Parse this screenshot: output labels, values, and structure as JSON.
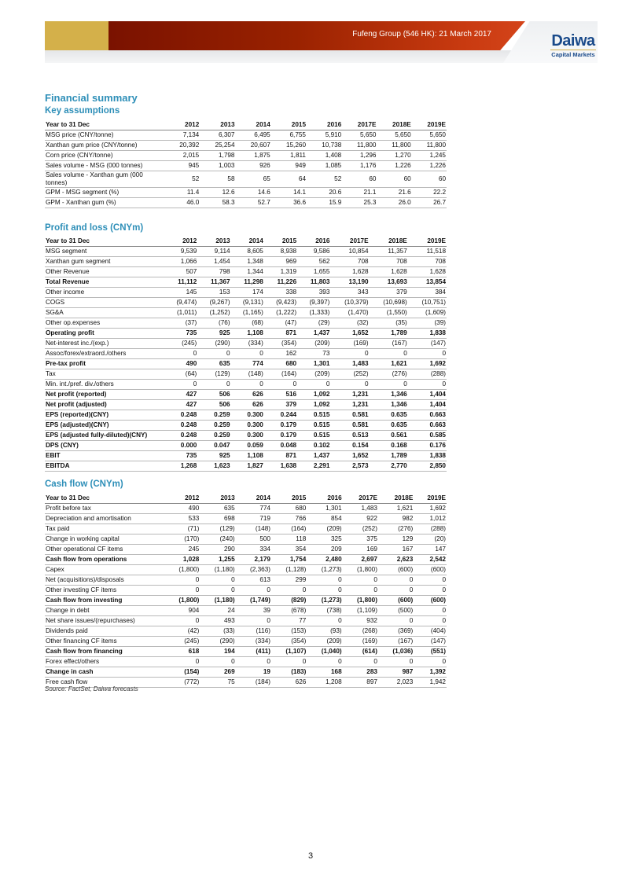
{
  "header": {
    "title": "Fufeng Group (546 HK): 21 March 2017",
    "logo_main": "Daiwa",
    "logo_sub": "Capital Markets",
    "accent": "#2e8fb8",
    "band_red": "#9a2200",
    "band_gold": "#d4b04a"
  },
  "page_title": "Financial summary",
  "columns": [
    "Year to 31 Dec",
    "2012",
    "2013",
    "2014",
    "2015",
    "2016",
    "2017E",
    "2018E",
    "2019E"
  ],
  "tables": [
    {
      "title": "Key assumptions",
      "rows": [
        {
          "label": "MSG price (CNY/tonne)",
          "values": [
            "7,134",
            "6,307",
            "6,495",
            "6,755",
            "5,910",
            "5,650",
            "5,650",
            "5,650"
          ]
        },
        {
          "label": "Xanthan gum price (CNY/tonne)",
          "values": [
            "20,392",
            "25,254",
            "20,607",
            "15,260",
            "10,738",
            "11,800",
            "11,800",
            "11,800"
          ]
        },
        {
          "label": "Corn price (CNY/tonne)",
          "values": [
            "2,015",
            "1,798",
            "1,875",
            "1,811",
            "1,408",
            "1,296",
            "1,270",
            "1,245"
          ]
        },
        {
          "label": "Sales volume - MSG (000 tonnes)",
          "values": [
            "945",
            "1,003",
            "926",
            "949",
            "1,085",
            "1,176",
            "1,226",
            "1,226"
          ]
        },
        {
          "label": "Sales volume - Xanthan gum (000 tonnes)",
          "values": [
            "52",
            "58",
            "65",
            "64",
            "52",
            "60",
            "60",
            "60"
          ],
          "tall": true
        },
        {
          "label": "GPM - MSG segment (%)",
          "values": [
            "11.4",
            "12.6",
            "14.6",
            "14.1",
            "20.6",
            "21.1",
            "21.6",
            "22.2"
          ]
        },
        {
          "label": "GPM - Xanthan gum (%)",
          "values": [
            "46.0",
            "58.3",
            "52.7",
            "36.6",
            "15.9",
            "25.3",
            "26.0",
            "26.7"
          ]
        }
      ]
    },
    {
      "title": "Profit and loss (CNYm)",
      "rows": [
        {
          "label": "MSG segment",
          "values": [
            "9,539",
            "9,114",
            "8,605",
            "8,938",
            "9,586",
            "10,854",
            "11,357",
            "11,518"
          ]
        },
        {
          "label": "Xanthan gum segment",
          "values": [
            "1,066",
            "1,454",
            "1,348",
            "969",
            "562",
            "708",
            "708",
            "708"
          ]
        },
        {
          "label": "Other Revenue",
          "values": [
            "507",
            "798",
            "1,344",
            "1,319",
            "1,655",
            "1,628",
            "1,628",
            "1,628"
          ]
        },
        {
          "label": "Total Revenue",
          "values": [
            "11,112",
            "11,367",
            "11,298",
            "11,226",
            "11,803",
            "13,190",
            "13,693",
            "13,854"
          ],
          "bold": true
        },
        {
          "label": "Other income",
          "values": [
            "145",
            "153",
            "174",
            "338",
            "393",
            "343",
            "379",
            "384"
          ]
        },
        {
          "label": "COGS",
          "values": [
            "(9,474)",
            "(9,267)",
            "(9,131)",
            "(9,423)",
            "(9,397)",
            "(10,379)",
            "(10,698)",
            "(10,751)"
          ]
        },
        {
          "label": "SG&A",
          "values": [
            "(1,011)",
            "(1,252)",
            "(1,165)",
            "(1,222)",
            "(1,333)",
            "(1,470)",
            "(1,550)",
            "(1,609)"
          ]
        },
        {
          "label": "Other op.expenses",
          "values": [
            "(37)",
            "(76)",
            "(68)",
            "(47)",
            "(29)",
            "(32)",
            "(35)",
            "(39)"
          ]
        },
        {
          "label": "Operating profit",
          "values": [
            "735",
            "925",
            "1,108",
            "871",
            "1,437",
            "1,652",
            "1,789",
            "1,838"
          ],
          "bold": true
        },
        {
          "label": "Net-interest inc./(exp.)",
          "values": [
            "(245)",
            "(290)",
            "(334)",
            "(354)",
            "(209)",
            "(169)",
            "(167)",
            "(147)"
          ]
        },
        {
          "label": "Assoc/forex/extraord./others",
          "values": [
            "0",
            "0",
            "0",
            "162",
            "73",
            "0",
            "0",
            "0"
          ]
        },
        {
          "label": "Pre-tax profit",
          "values": [
            "490",
            "635",
            "774",
            "680",
            "1,301",
            "1,483",
            "1,621",
            "1,692"
          ],
          "bold": true
        },
        {
          "label": "Tax",
          "values": [
            "(64)",
            "(129)",
            "(148)",
            "(164)",
            "(209)",
            "(252)",
            "(276)",
            "(288)"
          ]
        },
        {
          "label": "Min. int./pref. div./others",
          "values": [
            "0",
            "0",
            "0",
            "0",
            "0",
            "0",
            "0",
            "0"
          ]
        },
        {
          "label": "Net profit (reported)",
          "values": [
            "427",
            "506",
            "626",
            "516",
            "1,092",
            "1,231",
            "1,346",
            "1,404"
          ],
          "bold": true
        },
        {
          "label": "Net profit (adjusted)",
          "values": [
            "427",
            "506",
            "626",
            "379",
            "1,092",
            "1,231",
            "1,346",
            "1,404"
          ],
          "bold": true
        },
        {
          "label": "EPS (reported)(CNY)",
          "values": [
            "0.248",
            "0.259",
            "0.300",
            "0.244",
            "0.515",
            "0.581",
            "0.635",
            "0.663"
          ],
          "bold": true
        },
        {
          "label": "EPS (adjusted)(CNY)",
          "values": [
            "0.248",
            "0.259",
            "0.300",
            "0.179",
            "0.515",
            "0.581",
            "0.635",
            "0.663"
          ],
          "bold": true
        },
        {
          "label": "EPS (adjusted fully-diluted)(CNY)",
          "values": [
            "0.248",
            "0.259",
            "0.300",
            "0.179",
            "0.515",
            "0.513",
            "0.561",
            "0.585"
          ],
          "bold": true
        },
        {
          "label": "DPS (CNY)",
          "values": [
            "0.000",
            "0.047",
            "0.059",
            "0.048",
            "0.102",
            "0.154",
            "0.168",
            "0.176"
          ],
          "bold": true
        },
        {
          "label": "EBIT",
          "values": [
            "735",
            "925",
            "1,108",
            "871",
            "1,437",
            "1,652",
            "1,789",
            "1,838"
          ],
          "bold": true
        },
        {
          "label": "EBITDA",
          "values": [
            "1,268",
            "1,623",
            "1,827",
            "1,638",
            "2,291",
            "2,573",
            "2,770",
            "2,850"
          ],
          "bold": true
        }
      ]
    },
    {
      "title": "Cash flow (CNYm)",
      "rows": [
        {
          "label": "Profit before tax",
          "values": [
            "490",
            "635",
            "774",
            "680",
            "1,301",
            "1,483",
            "1,621",
            "1,692"
          ]
        },
        {
          "label": "Depreciation and amortisation",
          "values": [
            "533",
            "698",
            "719",
            "766",
            "854",
            "922",
            "982",
            "1,012"
          ]
        },
        {
          "label": "Tax paid",
          "values": [
            "(71)",
            "(129)",
            "(148)",
            "(164)",
            "(209)",
            "(252)",
            "(276)",
            "(288)"
          ]
        },
        {
          "label": "Change in working capital",
          "values": [
            "(170)",
            "(240)",
            "500",
            "118",
            "325",
            "375",
            "129",
            "(20)"
          ]
        },
        {
          "label": "Other operational CF items",
          "values": [
            "245",
            "290",
            "334",
            "354",
            "209",
            "169",
            "167",
            "147"
          ]
        },
        {
          "label": "Cash flow from operations",
          "values": [
            "1,028",
            "1,255",
            "2,179",
            "1,754",
            "2,480",
            "2,697",
            "2,623",
            "2,542"
          ],
          "bold": true
        },
        {
          "label": "Capex",
          "values": [
            "(1,800)",
            "(1,180)",
            "(2,363)",
            "(1,128)",
            "(1,273)",
            "(1,800)",
            "(600)",
            "(600)"
          ]
        },
        {
          "label": "Net (acquisitions)/disposals",
          "values": [
            "0",
            "0",
            "613",
            "299",
            "0",
            "0",
            "0",
            "0"
          ]
        },
        {
          "label": "Other investing CF items",
          "values": [
            "0",
            "0",
            "0",
            "0",
            "0",
            "0",
            "0",
            "0"
          ]
        },
        {
          "label": "Cash flow from investing",
          "values": [
            "(1,800)",
            "(1,180)",
            "(1,749)",
            "(829)",
            "(1,273)",
            "(1,800)",
            "(600)",
            "(600)"
          ],
          "bold": true
        },
        {
          "label": "Change in debt",
          "values": [
            "904",
            "24",
            "39",
            "(678)",
            "(738)",
            "(1,109)",
            "(500)",
            "0"
          ]
        },
        {
          "label": "Net share issues/(repurchases)",
          "values": [
            "0",
            "493",
            "0",
            "77",
            "0",
            "932",
            "0",
            "0"
          ]
        },
        {
          "label": "Dividends paid",
          "values": [
            "(42)",
            "(33)",
            "(116)",
            "(153)",
            "(93)",
            "(268)",
            "(369)",
            "(404)"
          ]
        },
        {
          "label": "Other financing CF items",
          "values": [
            "(245)",
            "(290)",
            "(334)",
            "(354)",
            "(209)",
            "(169)",
            "(167)",
            "(147)"
          ]
        },
        {
          "label": "Cash flow from financing",
          "values": [
            "618",
            "194",
            "(411)",
            "(1,107)",
            "(1,040)",
            "(614)",
            "(1,036)",
            "(551)"
          ],
          "bold": true
        },
        {
          "label": "Forex effect/others",
          "values": [
            "0",
            "0",
            "0",
            "0",
            "0",
            "0",
            "0",
            "0"
          ]
        },
        {
          "label": "Change in cash",
          "values": [
            "(154)",
            "269",
            "19",
            "(183)",
            "168",
            "283",
            "987",
            "1,392"
          ],
          "bold": true
        },
        {
          "label": "Free cash flow",
          "values": [
            "(772)",
            "75",
            "(184)",
            "626",
            "1,208",
            "897",
            "2,023",
            "1,942"
          ]
        }
      ]
    }
  ],
  "source": "Source: FactSet, Daiwa forecasts",
  "page_number": "3"
}
